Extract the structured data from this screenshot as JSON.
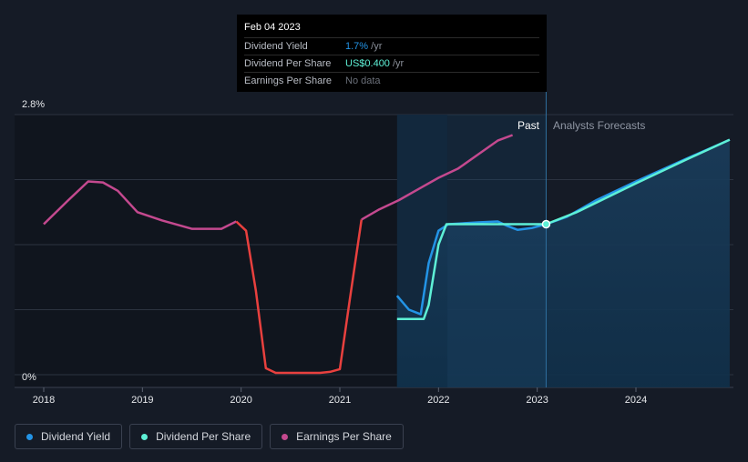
{
  "colors": {
    "background": "#151b26",
    "dividend_yield": "#2394e6",
    "dividend_per_share": "#5ef0d6",
    "earnings_per_share": "#c4498f",
    "earnings_negative": "#e8403e",
    "grid": "#2c3340"
  },
  "tooltip": {
    "date": "Feb 04 2023",
    "rows": [
      {
        "label": "Dividend Yield",
        "value_main": "1.7%",
        "value_unit": " /yr"
      },
      {
        "label": "Dividend Per Share",
        "value_main": "US$0.400",
        "value_unit": " /yr"
      },
      {
        "label": "Earnings Per Share",
        "value_main": "No data",
        "value_unit": ""
      }
    ]
  },
  "labels": {
    "past": "Past",
    "forecast": "Analysts Forecasts"
  },
  "legend": [
    {
      "label": "Dividend Yield",
      "icon": "dot-icon"
    },
    {
      "label": "Dividend Per Share",
      "icon": "dot-icon"
    },
    {
      "label": "Earnings Per Share",
      "icon": "dot-icon"
    }
  ],
  "chart_data": {
    "type": "line",
    "y_tick_labels": [
      "2.8%",
      "0%"
    ],
    "ylim": [
      0,
      2.8
    ],
    "xlim": [
      2017.9,
      2024.95
    ],
    "x_ticks": [
      2018,
      2019,
      2020,
      2021,
      2022,
      2023,
      2024
    ],
    "grid": true,
    "past_forecast_split": 2023.09,
    "series": [
      {
        "name": "Dividend Yield",
        "color": "#2394e6",
        "points": [
          [
            2021.58,
            0.85
          ],
          [
            2021.7,
            0.7
          ],
          [
            2021.82,
            0.65
          ],
          [
            2021.9,
            1.2
          ],
          [
            2022.0,
            1.55
          ],
          [
            2022.1,
            1.62
          ],
          [
            2022.4,
            1.64
          ],
          [
            2022.6,
            1.65
          ],
          [
            2022.7,
            1.6
          ],
          [
            2022.8,
            1.56
          ],
          [
            2022.95,
            1.58
          ],
          [
            2023.09,
            1.62
          ],
          [
            2023.3,
            1.7
          ],
          [
            2023.6,
            1.88
          ],
          [
            2024.0,
            2.08
          ],
          [
            2024.5,
            2.32
          ],
          [
            2024.95,
            2.53
          ]
        ]
      },
      {
        "name": "Dividend Per Share",
        "color": "#5ef0d6",
        "points": [
          [
            2021.58,
            0.6
          ],
          [
            2021.85,
            0.6
          ],
          [
            2021.9,
            0.75
          ],
          [
            2022.0,
            1.4
          ],
          [
            2022.08,
            1.62
          ],
          [
            2023.09,
            1.62
          ],
          [
            2023.4,
            1.75
          ],
          [
            2024.0,
            2.06
          ],
          [
            2024.5,
            2.31
          ],
          [
            2024.95,
            2.53
          ]
        ]
      },
      {
        "name": "Earnings Per Share",
        "color": "#c4498f",
        "negative_color": "#e8403e",
        "points": [
          [
            2018.0,
            1.62
          ],
          [
            2018.25,
            1.88
          ],
          [
            2018.45,
            2.08
          ],
          [
            2018.6,
            2.07
          ],
          [
            2018.75,
            1.98
          ],
          [
            2018.95,
            1.75
          ],
          [
            2019.2,
            1.66
          ],
          [
            2019.5,
            1.57
          ],
          [
            2019.8,
            1.57
          ],
          [
            2019.95,
            1.65
          ],
          [
            2020.05,
            1.55
          ],
          [
            2020.15,
            0.9
          ],
          [
            2020.25,
            0.07
          ],
          [
            2020.35,
            0.02
          ],
          [
            2020.8,
            0.02
          ],
          [
            2020.9,
            0.03
          ],
          [
            2021.0,
            0.06
          ],
          [
            2021.1,
            0.8
          ],
          [
            2021.22,
            1.67
          ],
          [
            2021.4,
            1.78
          ],
          [
            2021.6,
            1.88
          ],
          [
            2021.8,
            2.0
          ],
          [
            2022.0,
            2.12
          ],
          [
            2022.2,
            2.22
          ],
          [
            2022.4,
            2.37
          ],
          [
            2022.6,
            2.52
          ],
          [
            2022.75,
            2.58
          ]
        ]
      }
    ]
  }
}
